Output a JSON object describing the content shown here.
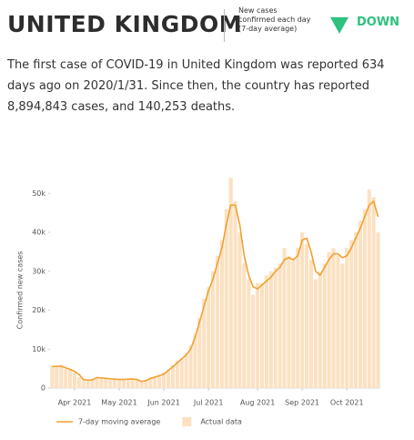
{
  "header": {
    "title": "UNITED KINGDOM",
    "indicator": "New cases confirmed each day (7-day average)",
    "trend": "DOWN"
  },
  "summary": "The first case of COVID-19 in United Kingdom was reported 634 days ago on 2020/1/31. Since then, the country has reported 8,894,843 cases, and 140,253 deaths.",
  "chart_data": {
    "type": "combo",
    "y_label": "Confirmed new cases",
    "categories": [
      null,
      null,
      null,
      null,
      null,
      "Apr 2021",
      null,
      null,
      null,
      null,
      null,
      null,
      null,
      null,
      null,
      "May 2021",
      null,
      null,
      null,
      null,
      null,
      null,
      null,
      null,
      null,
      "Jun 2021",
      null,
      null,
      null,
      null,
      null,
      null,
      null,
      null,
      null,
      "Jul 2021",
      null,
      null,
      null,
      null,
      null,
      null,
      null,
      null,
      null,
      null,
      "Aug 2021",
      null,
      null,
      null,
      null,
      null,
      null,
      null,
      null,
      null,
      "Sep 2021",
      null,
      null,
      null,
      null,
      null,
      null,
      null,
      null,
      null,
      "Oct 2021",
      null,
      null,
      null,
      null,
      null,
      null,
      null
    ],
    "series": [
      {
        "name": "Actual data",
        "kind": "bar",
        "color": "#fbe1c2",
        "values": [
          5800,
          5400,
          6000,
          4900,
          5000,
          4000,
          2800,
          2400,
          1800,
          2400,
          2900,
          2500,
          2700,
          2200,
          2500,
          2000,
          2400,
          2100,
          2600,
          2000,
          1600,
          2100,
          2700,
          3000,
          3400,
          4000,
          4800,
          5900,
          7000,
          7800,
          9100,
          11000,
          14000,
          18000,
          23000,
          26000,
          30000,
          34000,
          38000,
          46000,
          54000,
          48000,
          40000,
          32000,
          28000,
          24000,
          27000,
          27000,
          29000,
          30000,
          31000,
          32000,
          36000,
          34000,
          33000,
          36000,
          40000,
          37000,
          33000,
          28000,
          30000,
          32000,
          35000,
          36000,
          34000,
          32000,
          36000,
          38000,
          40000,
          43000,
          46000,
          51000,
          49000,
          40000
        ]
      },
      {
        "name": "7-day moving average",
        "kind": "line",
        "color": "#f0a232",
        "values": [
          5500,
          5600,
          5600,
          5200,
          4800,
          4300,
          3500,
          2200,
          2000,
          2100,
          2700,
          2600,
          2500,
          2400,
          2300,
          2200,
          2200,
          2300,
          2300,
          2200,
          1700,
          1900,
          2500,
          2800,
          3200,
          3600,
          4500,
          5500,
          6500,
          7500,
          8500,
          10000,
          13000,
          17000,
          21000,
          25000,
          28000,
          32000,
          36000,
          42000,
          47000,
          47000,
          42000,
          34000,
          29000,
          26000,
          25500,
          26500,
          27500,
          28500,
          30000,
          31000,
          33000,
          33500,
          33000,
          34000,
          38000,
          38500,
          35000,
          30000,
          29000,
          31000,
          33000,
          34500,
          34500,
          33500,
          34000,
          36000,
          38500,
          41000,
          44000,
          47000,
          48000,
          44000
        ]
      }
    ],
    "ylim": [
      0,
      55000
    ],
    "yticks": [
      0,
      {
        "value": 10000,
        "label": "10k"
      },
      {
        "value": 20000,
        "label": "20k"
      },
      {
        "value": 30000,
        "label": "30k"
      },
      {
        "value": 40000,
        "label": "40k"
      },
      {
        "value": 50000,
        "label": "50k"
      }
    ],
    "grid": false
  }
}
